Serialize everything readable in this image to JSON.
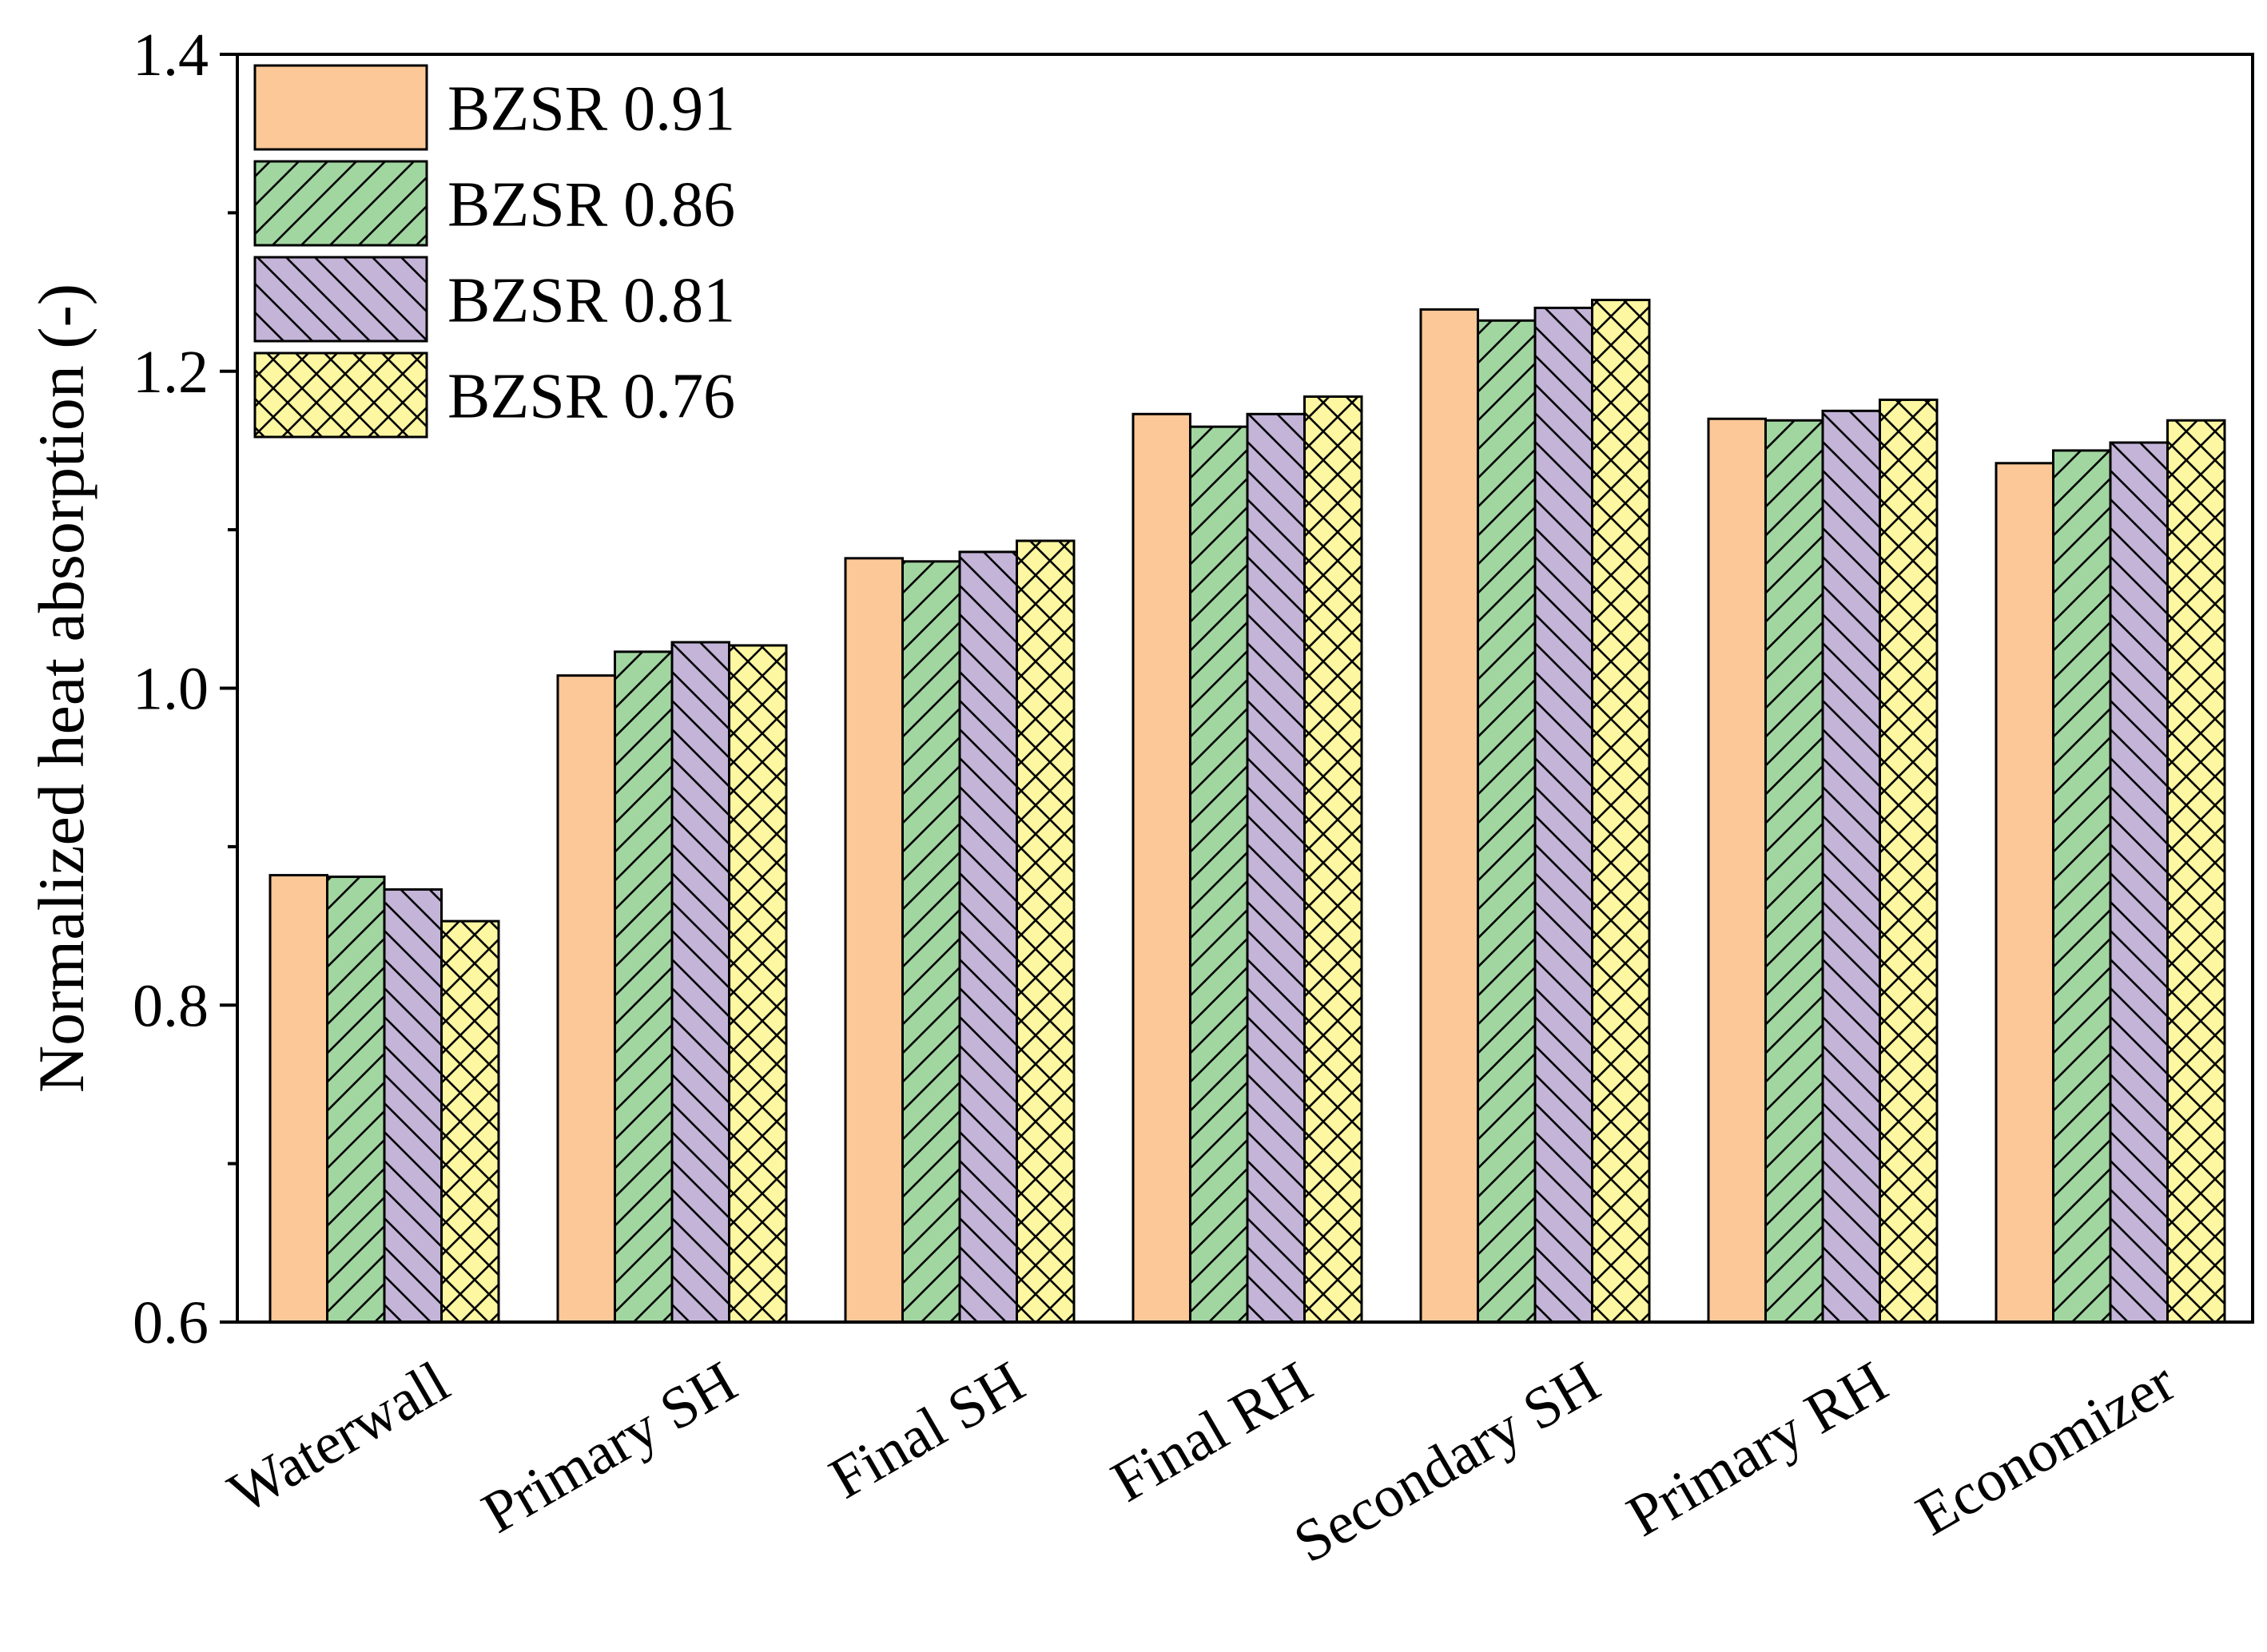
{
  "chart_data": {
    "type": "bar",
    "title": "",
    "xlabel": "",
    "ylabel": "Normalized heat absorption (-)",
    "ylim": [
      0.6,
      1.4
    ],
    "yticks": [
      "0.6",
      "0.8",
      "1.0",
      "1.2",
      "1.4"
    ],
    "grid": false,
    "legend_position": "top-left",
    "categories": [
      "Waterwall",
      "Primary SH",
      "Final SH",
      "Final RH",
      "Secondary SH",
      "Primary RH",
      "Economizer"
    ],
    "series": [
      {
        "name": "BZSR 0.91",
        "color": "#FDC897",
        "pattern": "none",
        "values": [
          0.882,
          1.008,
          1.082,
          1.173,
          1.239,
          1.17,
          1.142
        ]
      },
      {
        "name": "BZSR 0.86",
        "color": "#A2D6A1",
        "pattern": "diagonal-forward",
        "values": [
          0.881,
          1.023,
          1.08,
          1.165,
          1.232,
          1.169,
          1.15
        ]
      },
      {
        "name": "BZSR 0.81",
        "color": "#C3B4D8",
        "pattern": "diagonal-backward",
        "values": [
          0.873,
          1.029,
          1.086,
          1.173,
          1.24,
          1.175,
          1.155
        ]
      },
      {
        "name": "BZSR 0.76",
        "color": "#FCF7A0",
        "pattern": "crosshatch",
        "values": [
          0.853,
          1.027,
          1.093,
          1.184,
          1.245,
          1.182,
          1.169
        ]
      }
    ]
  }
}
